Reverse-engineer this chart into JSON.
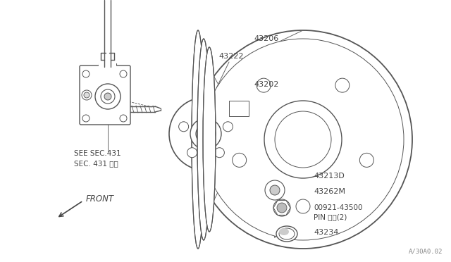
{
  "bg_color": "#ffffff",
  "line_color": "#555555",
  "text_color": "#444444",
  "watermark": "A/30A0.02",
  "see_sec_text": [
    "SEE SEC.431",
    "SEC. 431 参図"
  ],
  "front_label": "FRONT"
}
